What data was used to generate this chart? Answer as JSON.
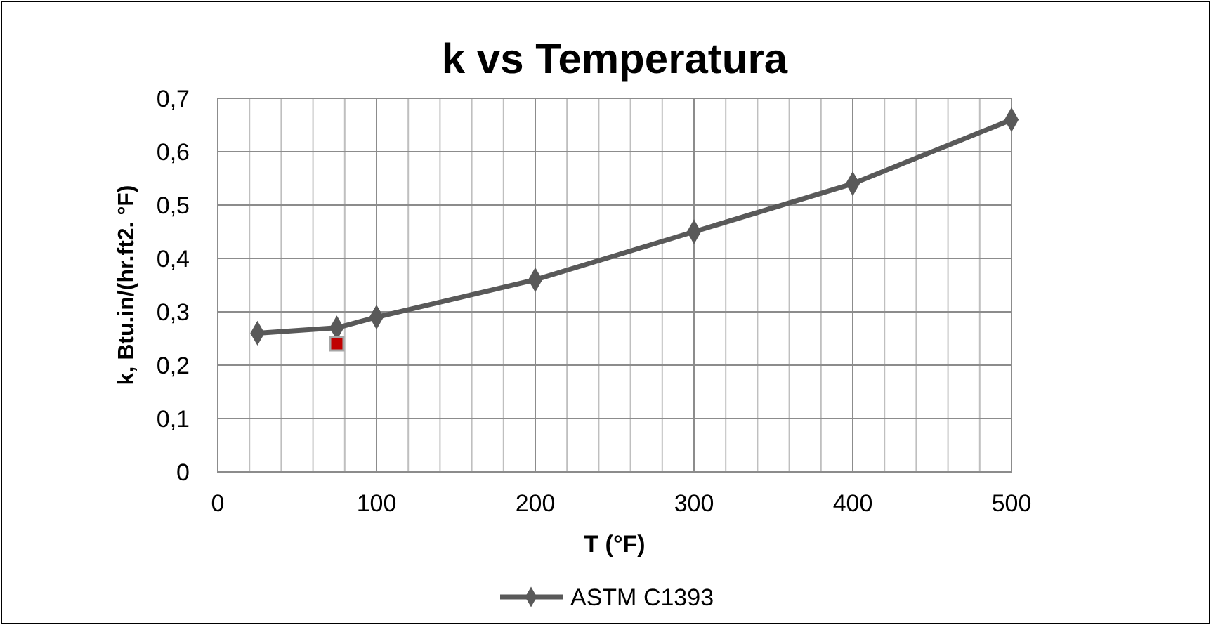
{
  "chart_data": {
    "type": "line",
    "title": "k vs Temperatura",
    "xlabel": "T (°F)",
    "ylabel": "k, Btu.in/(hr.ft2. °F)",
    "xlim": [
      0,
      500
    ],
    "ylim": [
      0,
      0.7
    ],
    "xticks": [
      0,
      {
        "value": 20,
        "label": null
      },
      {
        "value": 40,
        "label": null
      },
      {
        "value": 60,
        "label": null
      },
      {
        "value": 80,
        "label": null
      },
      100,
      {
        "value": 120,
        "label": null
      },
      {
        "value": 140,
        "label": null
      },
      {
        "value": 160,
        "label": null
      },
      {
        "value": 180,
        "label": null
      },
      200,
      {
        "value": 220,
        "label": null
      },
      {
        "value": 240,
        "label": null
      },
      {
        "value": 260,
        "label": null
      },
      {
        "value": 280,
        "label": null
      },
      300,
      {
        "value": 320,
        "label": null
      },
      {
        "value": 340,
        "label": null
      },
      {
        "value": 360,
        "label": null
      },
      {
        "value": 380,
        "label": null
      },
      400,
      {
        "value": 420,
        "label": null
      },
      {
        "value": 440,
        "label": null
      },
      {
        "value": 460,
        "label": null
      },
      {
        "value": 480,
        "label": null
      },
      500
    ],
    "yticks": [
      {
        "value": 0,
        "label": "0"
      },
      {
        "value": 0.1,
        "label": "0,1"
      },
      {
        "value": 0.2,
        "label": "0,2"
      },
      {
        "value": 0.3,
        "label": "0,3"
      },
      {
        "value": 0.4,
        "label": "0,4"
      },
      {
        "value": 0.5,
        "label": "0,5"
      },
      {
        "value": 0.6,
        "label": "0,6"
      },
      {
        "value": 0.7,
        "label": "0,7"
      }
    ],
    "grid": true,
    "legend": "bottom",
    "line_style": "solid",
    "series": [
      {
        "name": "ASTM C1393",
        "color": "#595959",
        "marker": "diamond",
        "x": [
          25,
          75,
          100,
          200,
          300,
          400,
          500
        ],
        "values": [
          0.26,
          0.27,
          0.29,
          0.36,
          0.45,
          0.54,
          0.66
        ]
      },
      {
        "color": "#c00000",
        "marker": "square",
        "type": "scatter",
        "x": [
          75
        ],
        "values": [
          0.24
        ]
      }
    ]
  }
}
